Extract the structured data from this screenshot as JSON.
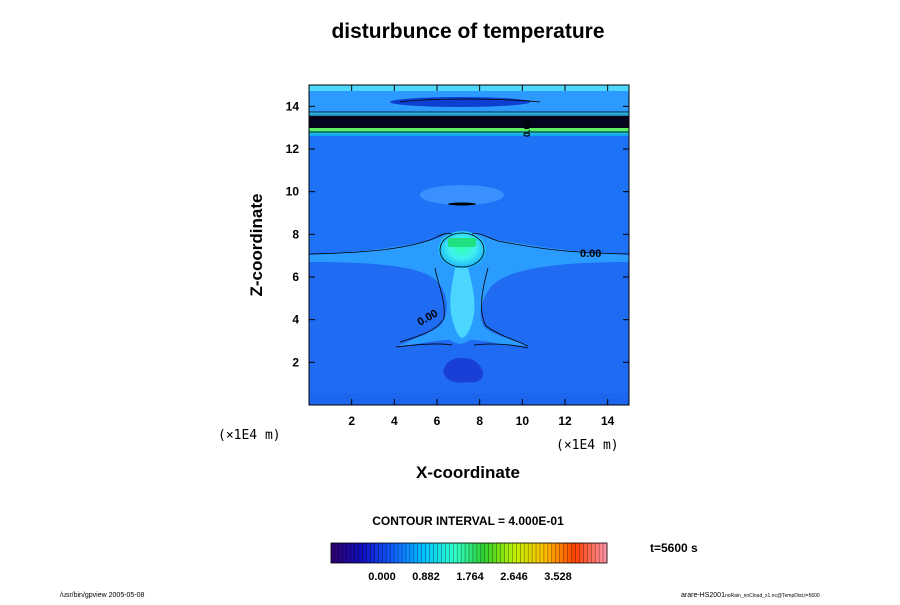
{
  "chart_data": {
    "type": "heatmap",
    "title": "disturbunce of temperature",
    "xlabel": "X-coordinate",
    "ylabel": "Z-coordinate",
    "x_unit": "(×1E4 m)",
    "y_unit": "(×1E4 m)",
    "xlim": [
      0,
      15
    ],
    "ylim": [
      0,
      15
    ],
    "x_ticks": [
      "2",
      "4",
      "6",
      "8",
      "10",
      "12",
      "14"
    ],
    "y_ticks": [
      "2",
      "4",
      "6",
      "8",
      "10",
      "12",
      "14"
    ],
    "contour_labels": [
      {
        "text": "0.00",
        "x": 13.3,
        "z": 7.0
      },
      {
        "text": "0.00",
        "x": 5.8,
        "z": 4.0
      },
      {
        "text": "0.00",
        "x": 10.6,
        "z": 12.9
      }
    ],
    "contour_interval_text": "CONTOUR INTERVAL = 4.000E-01",
    "colorbar": {
      "ticks": [
        "0.000",
        "0.882",
        "1.764",
        "2.646",
        "3.528"
      ],
      "colors_low_to_high": [
        "#2a0070",
        "#1010c0",
        "#1060ff",
        "#00c0ff",
        "#30ffd0",
        "#30d030",
        "#c0f000",
        "#ffc000",
        "#ff4000",
        "#ff90a0"
      ]
    },
    "time_label": "t=5600 s",
    "grid": false
  },
  "footer": {
    "left": "/usr/bin/gpview 2005-05-08",
    "right_main": "arare-HS2001",
    "right_sub": "noRain_noCloud_x1.nc@TempDist,t=5600"
  }
}
